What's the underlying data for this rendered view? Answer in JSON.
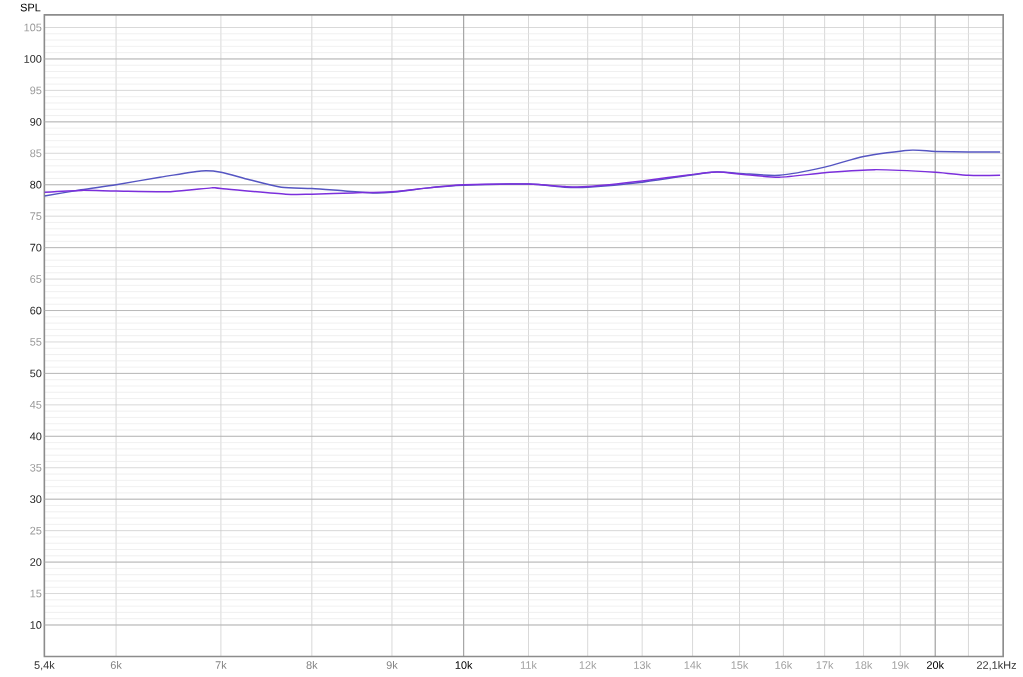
{
  "chart_data": {
    "type": "line",
    "ylabel": "SPL",
    "xlabel": "Hz",
    "log": "x",
    "grid": true,
    "xlim": [
      5400,
      22100
    ],
    "ylim": [
      5,
      107
    ],
    "xticks": [
      {
        "value": 5400,
        "label": "5,4k"
      },
      {
        "value": 6000,
        "label": "6k"
      },
      {
        "value": 7000,
        "label": "7k"
      },
      {
        "value": 8000,
        "label": "8k"
      },
      {
        "value": 9000,
        "label": "9k"
      },
      {
        "value": 10000,
        "label": "10k"
      },
      {
        "value": 11000,
        "label": "11k"
      },
      {
        "value": 12000,
        "label": "12k"
      },
      {
        "value": 13000,
        "label": "13k"
      },
      {
        "value": 14000,
        "label": "14k"
      },
      {
        "value": 15000,
        "label": "15k"
      },
      {
        "value": 16000,
        "label": "16k"
      },
      {
        "value": 17000,
        "label": "17k"
      },
      {
        "value": 18000,
        "label": "18k"
      },
      {
        "value": 19000,
        "label": "19k"
      },
      {
        "value": 20000,
        "label": "20k"
      },
      {
        "value": 21000,
        "label": null
      },
      {
        "value": 22100,
        "label": "22,1k"
      }
    ],
    "yticks": [
      10,
      15,
      20,
      25,
      30,
      35,
      40,
      45,
      50,
      55,
      60,
      65,
      70,
      75,
      80,
      85,
      90,
      95,
      100,
      105
    ],
    "series": [
      {
        "color": "#5555c2",
        "x": [
          5400,
          5700,
          6000,
          6400,
          6800,
          7000,
          7300,
          7650,
          8000,
          8400,
          8750,
          9000,
          9500,
          10000,
          11000,
          11600,
          12000,
          13000,
          14400,
          15000,
          15900,
          17000,
          18000,
          19250,
          20000,
          21000,
          22000
        ],
        "values": [
          78.2,
          79.2,
          80.0,
          81.2,
          82.2,
          82.0,
          80.8,
          79.6,
          79.4,
          79.0,
          78.7,
          78.8,
          79.5,
          79.9,
          80.1,
          79.6,
          79.6,
          80.4,
          82.0,
          81.8,
          81.5,
          82.8,
          84.5,
          85.5,
          85.3,
          85.2,
          85.2
        ]
      },
      {
        "color": "#7b2fdc",
        "x": [
          5400,
          5700,
          6000,
          6500,
          6900,
          7000,
          7700,
          8000,
          8500,
          9000,
          9500,
          10000,
          11000,
          11600,
          12000,
          13000,
          14400,
          15000,
          15900,
          17000,
          18300,
          20000,
          21000,
          22000
        ],
        "values": [
          78.8,
          79.1,
          79.0,
          78.9,
          79.5,
          79.4,
          78.5,
          78.5,
          78.7,
          78.9,
          79.5,
          80.0,
          80.1,
          79.7,
          79.7,
          80.6,
          82.0,
          81.7,
          81.2,
          81.9,
          82.4,
          82.0,
          81.5,
          81.5
        ]
      }
    ]
  }
}
